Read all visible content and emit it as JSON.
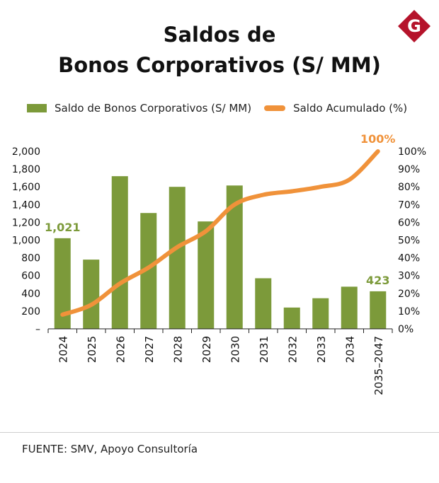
{
  "header": {
    "title_line1": "Saldos de",
    "title_line2": "Bonos Corporativos (S/ MM)"
  },
  "logo": {
    "letter": "G",
    "color": "#b5132b",
    "icon": "gestion-logo-icon"
  },
  "legend": {
    "bar_label": "Saldo de Bonos Corporativos (S/ MM)",
    "line_label": "Saldo Acumulado (%)"
  },
  "colors": {
    "bar": "#7c9a3a",
    "line": "#f0923a",
    "bar_label": "#7c9a3a",
    "line_label": "#f0923a",
    "axis": "#222222"
  },
  "chart_data": {
    "type": "bar",
    "title": "Saldos de Bonos Corporativos (S/ MM)",
    "categories": [
      "2024",
      "2025",
      "2026",
      "2027",
      "2028",
      "2029",
      "2030",
      "2031",
      "2032",
      "2033",
      "2034",
      "2035–2047"
    ],
    "series": [
      {
        "name": "Saldo de Bonos Corporativos (S/ MM)",
        "type": "bar",
        "axis": "left",
        "values": [
          1021,
          780,
          1720,
          1305,
          1600,
          1210,
          1615,
          570,
          240,
          345,
          475,
          423
        ]
      },
      {
        "name": "Saldo Acumulado (%)",
        "type": "line",
        "axis": "right",
        "values": [
          8,
          13.5,
          25.5,
          34.5,
          46,
          55,
          70,
          75.5,
          77.5,
          80,
          84,
          100
        ]
      }
    ],
    "data_labels": [
      {
        "category": "2024",
        "series": "Saldo de Bonos Corporativos (S/ MM)",
        "text": "1,021"
      },
      {
        "category": "2035–2047",
        "series": "Saldo de Bonos Corporativos (S/ MM)",
        "text": "423"
      },
      {
        "category": "2035–2047",
        "series": "Saldo Acumulado (%)",
        "text": "100%"
      }
    ],
    "y_left": {
      "ylim": [
        0,
        2000
      ],
      "ticks": [
        0,
        200,
        400,
        600,
        800,
        1000,
        1200,
        1400,
        1600,
        1800,
        2000
      ],
      "tick_labels": [
        "–",
        "200",
        "400",
        "600",
        "800",
        "1,000",
        "1,200",
        "1,400",
        "1,600",
        "1,800",
        "2,000"
      ]
    },
    "y_right": {
      "ylim": [
        0,
        100
      ],
      "ticks": [
        0,
        10,
        20,
        30,
        40,
        50,
        60,
        70,
        80,
        90,
        100
      ],
      "tick_labels": [
        "0%",
        "10%",
        "20%",
        "30%",
        "40%",
        "50%",
        "60%",
        "70%",
        "80%",
        "90%",
        "100%"
      ]
    },
    "x_tick_rotation": "vertical",
    "grid": false,
    "legend_position": "top"
  },
  "footer": {
    "source": "FUENTE: SMV, Apoyo Consultoría"
  }
}
